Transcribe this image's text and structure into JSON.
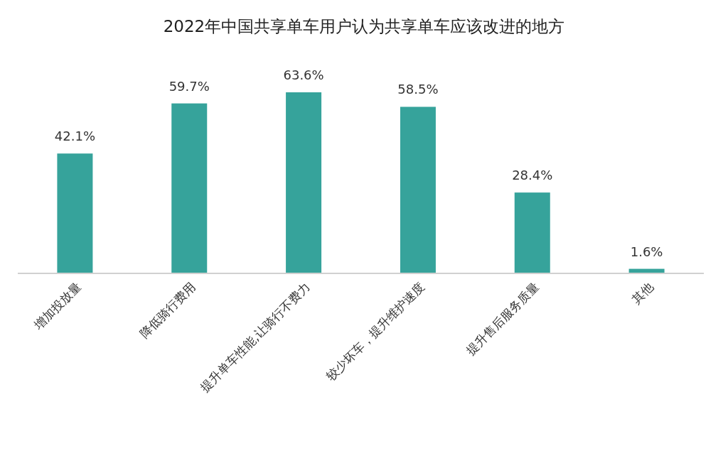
{
  "chart_data": {
    "type": "bar",
    "title": "2022年中国共享单车用户认为共享单车应该改进的地方",
    "categories": [
      "增加投放量",
      "降低骑行费用",
      "提升单车性能,让骑行不费力",
      "较少坏车，提升维护速度",
      "提升售后服务质量",
      "其他"
    ],
    "values": [
      42.1,
      59.7,
      63.6,
      58.5,
      28.4,
      1.6
    ],
    "value_labels": [
      "42.1%",
      "59.7%",
      "63.6%",
      "58.5%",
      "28.4%",
      "1.6%"
    ],
    "color": "#36a39b"
  }
}
